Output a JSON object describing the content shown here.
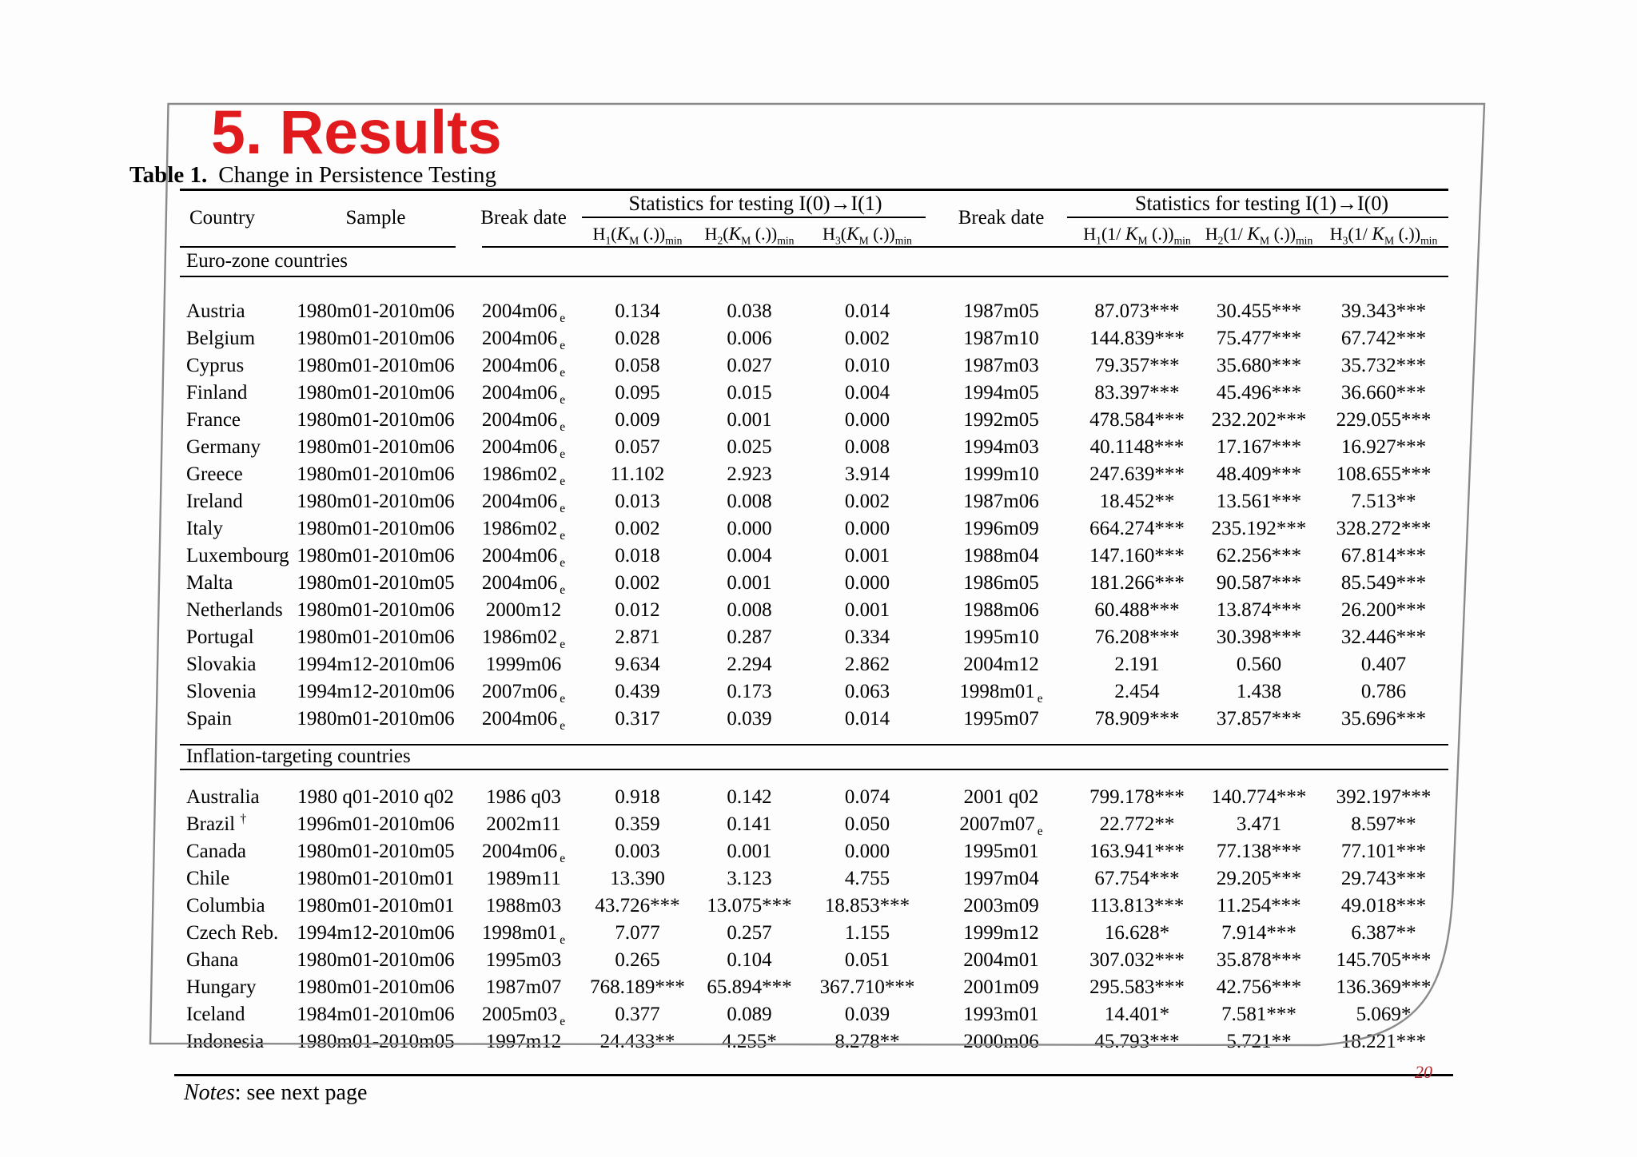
{
  "slide": {
    "title": "5. Results",
    "caption_label": "Table 1.",
    "caption_text": "Change in Persistence Testing",
    "notes_label": "Notes",
    "notes_text": ": see next page",
    "page_number": "20",
    "colors": {
      "title_red": "#e01a1d",
      "page_number_red": "#b5242b",
      "frame_gray": "#8a8a8a"
    }
  },
  "table": {
    "headers": {
      "country": "Country",
      "sample": "Sample",
      "break_left": "Break date",
      "break_right": "Break date",
      "group_left": "Statistics for testing I(0)→I(1)",
      "group_right": "Statistics for testing I(1)→I(0)",
      "stat_left": [
        [
          "H",
          [
            "s",
            "1"
          ],
          "(",
          [
            "k",
            "K"
          ],
          [
            "s",
            "M"
          ],
          " (.))",
          [
            "s",
            "min"
          ]
        ],
        [
          "H",
          [
            "s",
            "2"
          ],
          "(",
          [
            "k",
            "K"
          ],
          [
            "s",
            "M"
          ],
          " (.))",
          [
            "s",
            "min"
          ]
        ],
        [
          "H",
          [
            "s",
            "3"
          ],
          "(",
          [
            "k",
            "K"
          ],
          [
            "s",
            "M"
          ],
          " (.))",
          [
            "s",
            "min"
          ]
        ]
      ],
      "stat_right": [
        [
          "H",
          [
            "s",
            "1"
          ],
          "(1/ ",
          [
            "k",
            "K"
          ],
          [
            "s",
            "M"
          ],
          " (.))",
          [
            "s",
            "min"
          ]
        ],
        [
          "H",
          [
            "s",
            "2"
          ],
          "(1/ ",
          [
            "k",
            "K"
          ],
          [
            "s",
            "M"
          ],
          " (.))",
          [
            "s",
            "min"
          ]
        ],
        [
          "H",
          [
            "s",
            "3"
          ],
          "(1/ ",
          [
            "k",
            "K"
          ],
          [
            "s",
            "M"
          ],
          " (.))",
          [
            "s",
            "min"
          ]
        ]
      ]
    },
    "sections": [
      {
        "label": "Euro-zone countries",
        "rows": [
          [
            "Austria",
            "1980m01-2010m06",
            [
              "2004m06",
              [
                "s",
                "e"
              ]
            ],
            "0.134",
            "0.038",
            "0.014",
            "1987m05",
            "87.073***",
            "30.455***",
            "39.343***"
          ],
          [
            "Belgium",
            "1980m01-2010m06",
            [
              "2004m06",
              [
                "s",
                "e"
              ]
            ],
            "0.028",
            "0.006",
            "0.002",
            "1987m10",
            "144.839***",
            "75.477***",
            "67.742***"
          ],
          [
            "Cyprus",
            "1980m01-2010m06",
            [
              "2004m06",
              [
                "s",
                "e"
              ]
            ],
            "0.058",
            "0.027",
            "0.010",
            "1987m03",
            "79.357***",
            "35.680***",
            "35.732***"
          ],
          [
            "Finland",
            "1980m01-2010m06",
            [
              "2004m06",
              [
                "s",
                "e"
              ]
            ],
            "0.095",
            "0.015",
            "0.004",
            "1994m05",
            "83.397***",
            "45.496***",
            "36.660***"
          ],
          [
            "France",
            "1980m01-2010m06",
            [
              "2004m06",
              [
                "s",
                "e"
              ]
            ],
            "0.009",
            "0.001",
            "0.000",
            "1992m05",
            "478.584***",
            "232.202***",
            "229.055***"
          ],
          [
            "Germany",
            "1980m01-2010m06",
            [
              "2004m06",
              [
                "s",
                "e"
              ]
            ],
            "0.057",
            "0.025",
            "0.008",
            "1994m03",
            "40.1148***",
            "17.167***",
            "16.927***"
          ],
          [
            "Greece",
            "1980m01-2010m06",
            [
              "1986m02",
              [
                "s",
                "e"
              ]
            ],
            "11.102",
            "2.923",
            "3.914",
            "1999m10",
            "247.639***",
            "48.409***",
            "108.655***"
          ],
          [
            "Ireland",
            "1980m01-2010m06",
            [
              "2004m06",
              [
                "s",
                "e"
              ]
            ],
            "0.013",
            "0.008",
            "0.002",
            "1987m06",
            "18.452**",
            "13.561***",
            "7.513**"
          ],
          [
            "Italy",
            "1980m01-2010m06",
            [
              "1986m02",
              [
                "s",
                "e"
              ]
            ],
            "0.002",
            "0.000",
            "0.000",
            "1996m09",
            "664.274***",
            "235.192***",
            "328.272***"
          ],
          [
            "Luxembourg",
            "1980m01-2010m06",
            [
              "2004m06",
              [
                "s",
                "e"
              ]
            ],
            "0.018",
            "0.004",
            "0.001",
            "1988m04",
            "147.160***",
            "62.256***",
            "67.814***"
          ],
          [
            "Malta",
            "1980m01-2010m05",
            [
              "2004m06",
              [
                "s",
                "e"
              ]
            ],
            "0.002",
            "0.001",
            "0.000",
            "1986m05",
            "181.266***",
            "90.587***",
            "85.549***"
          ],
          [
            "Netherlands",
            "1980m01-2010m06",
            "2000m12",
            "0.012",
            "0.008",
            "0.001",
            "1988m06",
            "60.488***",
            "13.874***",
            "26.200***"
          ],
          [
            "Portugal",
            "1980m01-2010m06",
            [
              "1986m02",
              [
                "s",
                "e"
              ]
            ],
            "2.871",
            "0.287",
            "0.334",
            "1995m10",
            "76.208***",
            "30.398***",
            "32.446***"
          ],
          [
            "Slovakia",
            "1994m12-2010m06",
            "1999m06",
            "9.634",
            "2.294",
            "2.862",
            "2004m12",
            "2.191",
            "0.560",
            "0.407"
          ],
          [
            "Slovenia",
            "1994m12-2010m06",
            [
              "2007m06",
              [
                "s",
                "e"
              ]
            ],
            "0.439",
            "0.173",
            "0.063",
            [
              "1998m01",
              [
                "s",
                "e"
              ]
            ],
            "2.454",
            "1.438",
            "0.786"
          ],
          [
            "Spain",
            "1980m01-2010m06",
            [
              "2004m06",
              [
                "s",
                "e"
              ]
            ],
            "0.317",
            "0.039",
            "0.014",
            "1995m07",
            "78.909***",
            "37.857***",
            "35.696***"
          ]
        ]
      },
      {
        "label": "Inflation-targeting countries",
        "rows": [
          [
            "Australia",
            "1980 q01-2010 q02",
            "1986 q03",
            "0.918",
            "0.142",
            "0.074",
            "2001 q02",
            "799.178***",
            "140.774***",
            "392.197***"
          ],
          [
            [
              "Brazil ",
              [
                "p",
                "†"
              ]
            ],
            "1996m01-2010m06",
            "2002m11",
            "0.359",
            "0.141",
            "0.050",
            [
              "2007m07",
              [
                "s",
                "e"
              ]
            ],
            "22.772**",
            "3.471",
            "8.597**"
          ],
          [
            "Canada",
            "1980m01-2010m05",
            [
              "2004m06",
              [
                "s",
                "e"
              ]
            ],
            "0.003",
            "0.001",
            "0.000",
            "1995m01",
            "163.941***",
            "77.138***",
            "77.101***"
          ],
          [
            "Chile",
            "1980m01-2010m01",
            "1989m11",
            "13.390",
            "3.123",
            "4.755",
            "1997m04",
            "67.754***",
            "29.205***",
            "29.743***"
          ],
          [
            "Columbia",
            "1980m01-2010m01",
            "1988m03",
            "43.726***",
            "13.075***",
            "18.853***",
            "2003m09",
            "113.813***",
            "11.254***",
            "49.018***"
          ],
          [
            "Czech Reb.",
            "1994m12-2010m06",
            [
              "1998m01",
              [
                "s",
                "e"
              ]
            ],
            "7.077",
            "0.257",
            "1.155",
            "1999m12",
            "16.628*",
            "7.914***",
            "6.387**"
          ],
          [
            "Ghana",
            "1980m01-2010m06",
            "1995m03",
            "0.265",
            "0.104",
            "0.051",
            "2004m01",
            "307.032***",
            "35.878***",
            "145.705***"
          ],
          [
            "Hungary",
            "1980m01-2010m06",
            "1987m07",
            "768.189***",
            "65.894***",
            "367.710***",
            "2001m09",
            "295.583***",
            "42.756***",
            "136.369***"
          ],
          [
            "Iceland",
            "1984m01-2010m06",
            [
              "2005m03",
              [
                "s",
                "e"
              ]
            ],
            "0.377",
            "0.089",
            "0.039",
            "1993m01",
            "14.401*",
            "7.581***",
            "5.069*"
          ],
          [
            "Indonesia",
            "1980m01-2010m05",
            "1997m12",
            "24.433**",
            "4.255*",
            "8.278**",
            "2000m06",
            "45.793***",
            "5.721**",
            "18.221***"
          ]
        ]
      }
    ]
  }
}
